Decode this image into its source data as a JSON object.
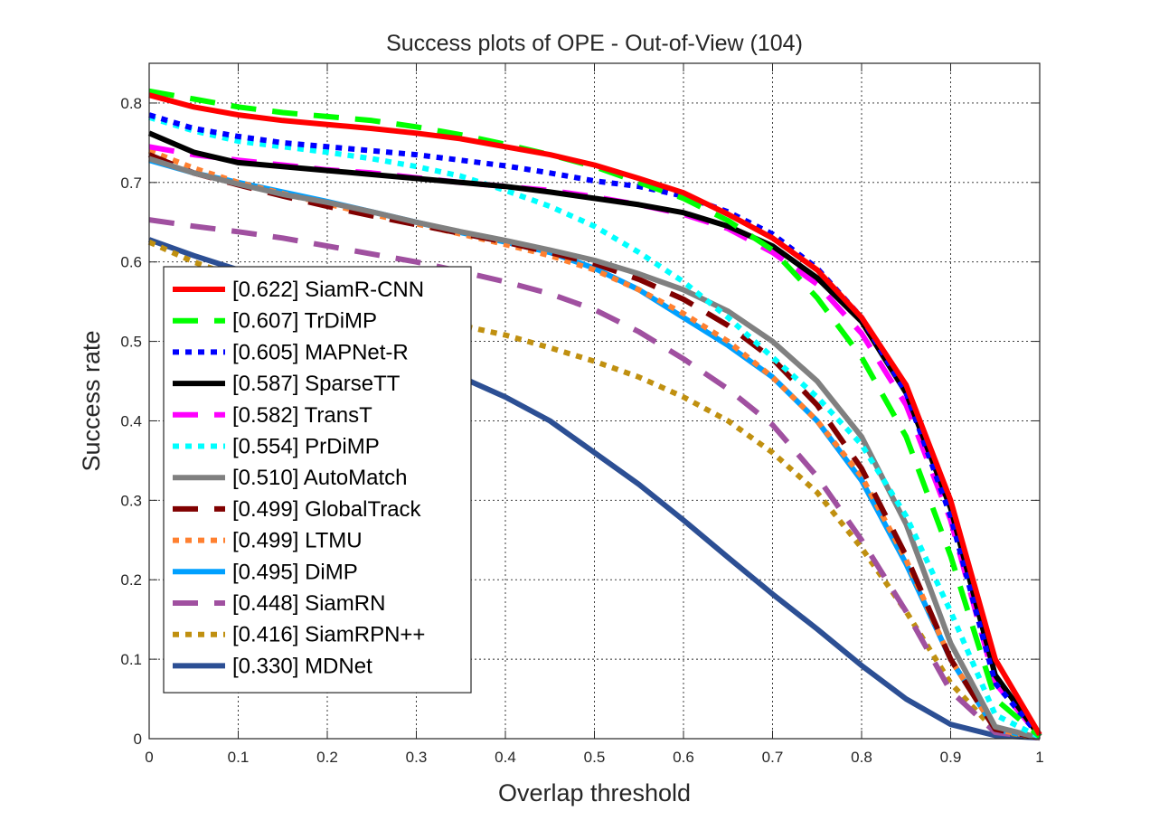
{
  "chart_data": {
    "type": "line",
    "title": "Success plots of OPE - Out-of-View (104)",
    "xlabel": "Overlap threshold",
    "ylabel": "Success rate",
    "xlim": [
      0,
      1
    ],
    "ylim": [
      0,
      0.85
    ],
    "xticks": [
      0,
      0.1,
      0.2,
      0.3,
      0.4,
      0.5,
      0.6,
      0.7,
      0.8,
      0.9,
      1
    ],
    "xtick_labels": [
      "0",
      "0.1",
      "0.2",
      "0.3",
      "0.4",
      "0.5",
      "0.6",
      "0.7",
      "0.8",
      "0.9",
      "1"
    ],
    "yticks": [
      0,
      0.1,
      0.2,
      0.3,
      0.4,
      0.5,
      0.6,
      0.7,
      0.8
    ],
    "ytick_labels": [
      "0",
      "0.1",
      "0.2",
      "0.3",
      "0.4",
      "0.5",
      "0.6",
      "0.7",
      "0.8"
    ],
    "grid": true,
    "legend_position": "lower-left",
    "x": [
      0,
      0.05,
      0.1,
      0.15,
      0.2,
      0.25,
      0.3,
      0.35,
      0.4,
      0.45,
      0.5,
      0.55,
      0.6,
      0.65,
      0.7,
      0.75,
      0.8,
      0.85,
      0.9,
      0.95,
      1
    ],
    "series": [
      {
        "name": "SiamR-CNN",
        "label": "[0.622] SiamR-CNN",
        "color": "#ff0000",
        "style": "solid",
        "values": [
          0.81,
          0.795,
          0.785,
          0.778,
          0.773,
          0.768,
          0.762,
          0.755,
          0.745,
          0.735,
          0.722,
          0.705,
          0.687,
          0.66,
          0.63,
          0.59,
          0.53,
          0.445,
          0.3,
          0.1,
          0.005
        ]
      },
      {
        "name": "TrDiMP",
        "label": "[0.607] TrDiMP",
        "color": "#00ff00",
        "style": "dashed",
        "values": [
          0.815,
          0.805,
          0.795,
          0.788,
          0.783,
          0.778,
          0.77,
          0.76,
          0.748,
          0.735,
          0.72,
          0.7,
          0.68,
          0.652,
          0.615,
          0.555,
          0.48,
          0.38,
          0.23,
          0.05,
          0.003
        ]
      },
      {
        "name": "MAPNet-R",
        "label": "[0.605] MAPNet-R",
        "color": "#0000ff",
        "style": "dotted",
        "values": [
          0.785,
          0.768,
          0.758,
          0.75,
          0.745,
          0.74,
          0.735,
          0.728,
          0.721,
          0.712,
          0.702,
          0.695,
          0.683,
          0.663,
          0.635,
          0.592,
          0.53,
          0.435,
          0.28,
          0.07,
          0.003
        ]
      },
      {
        "name": "SparseTT",
        "label": "[0.587] SparseTT",
        "color": "#000000",
        "style": "solid",
        "values": [
          0.762,
          0.738,
          0.725,
          0.72,
          0.715,
          0.71,
          0.705,
          0.7,
          0.695,
          0.688,
          0.68,
          0.672,
          0.662,
          0.645,
          0.62,
          0.58,
          0.525,
          0.435,
          0.29,
          0.08,
          0.003
        ]
      },
      {
        "name": "TransT",
        "label": "[0.582] TransT",
        "color": "#ff00ff",
        "style": "dashed",
        "values": [
          0.745,
          0.735,
          0.728,
          0.722,
          0.716,
          0.712,
          0.706,
          0.7,
          0.695,
          0.69,
          0.682,
          0.672,
          0.66,
          0.642,
          0.612,
          0.572,
          0.51,
          0.42,
          0.275,
          0.07,
          0.003
        ]
      },
      {
        "name": "PrDiMP",
        "label": "[0.554] PrDiMP",
        "color": "#00ffff",
        "style": "dotted",
        "values": [
          0.782,
          0.765,
          0.752,
          0.745,
          0.738,
          0.73,
          0.72,
          0.708,
          0.69,
          0.67,
          0.645,
          0.612,
          0.575,
          0.53,
          0.48,
          0.43,
          0.37,
          0.28,
          0.16,
          0.03,
          0.002
        ]
      },
      {
        "name": "AutoMatch",
        "label": "[0.510] AutoMatch",
        "color": "#808080",
        "style": "solid",
        "values": [
          0.73,
          0.712,
          0.698,
          0.685,
          0.675,
          0.663,
          0.65,
          0.638,
          0.627,
          0.615,
          0.602,
          0.585,
          0.565,
          0.538,
          0.5,
          0.45,
          0.38,
          0.27,
          0.12,
          0.015,
          0.001
        ]
      },
      {
        "name": "GlobalTrack",
        "label": "[0.499] GlobalTrack",
        "color": "#800000",
        "style": "dashed",
        "values": [
          0.735,
          0.712,
          0.697,
          0.683,
          0.67,
          0.658,
          0.647,
          0.636,
          0.625,
          0.612,
          0.598,
          0.578,
          0.553,
          0.52,
          0.478,
          0.42,
          0.34,
          0.23,
          0.1,
          0.012,
          0.001
        ]
      },
      {
        "name": "LTMU",
        "label": "[0.499] LTMU",
        "color": "#ff8030",
        "style": "dotted",
        "values": [
          0.74,
          0.718,
          0.7,
          0.686,
          0.673,
          0.66,
          0.648,
          0.635,
          0.622,
          0.608,
          0.59,
          0.565,
          0.535,
          0.5,
          0.455,
          0.4,
          0.33,
          0.225,
          0.1,
          0.012,
          0.001
        ]
      },
      {
        "name": "DiMP",
        "label": "[0.495] DiMP",
        "color": "#00a0ff",
        "style": "solid",
        "values": [
          0.728,
          0.712,
          0.7,
          0.688,
          0.676,
          0.663,
          0.65,
          0.637,
          0.625,
          0.612,
          0.592,
          0.565,
          0.53,
          0.495,
          0.455,
          0.4,
          0.325,
          0.22,
          0.1,
          0.012,
          0.001
        ]
      },
      {
        "name": "SiamRN",
        "label": "[0.448] SiamRN",
        "color": "#a050a0",
        "style": "dashed",
        "values": [
          0.653,
          0.645,
          0.638,
          0.63,
          0.62,
          0.61,
          0.6,
          0.588,
          0.575,
          0.56,
          0.54,
          0.512,
          0.478,
          0.44,
          0.395,
          0.33,
          0.25,
          0.16,
          0.06,
          0.008,
          0.001
        ]
      },
      {
        "name": "SiamRPN++",
        "label": "[0.416] SiamRPN++",
        "color": "#c09010",
        "style": "dotted",
        "values": [
          0.625,
          0.6,
          0.58,
          0.565,
          0.55,
          0.54,
          0.53,
          0.52,
          0.508,
          0.492,
          0.475,
          0.455,
          0.43,
          0.4,
          0.36,
          0.31,
          0.24,
          0.16,
          0.07,
          0.01,
          0.001
        ]
      },
      {
        "name": "MDNet",
        "label": "[0.330] MDNet",
        "color": "#2c4f94",
        "style": "solid",
        "values": [
          0.628,
          0.608,
          0.59,
          0.565,
          0.535,
          0.505,
          0.48,
          0.455,
          0.43,
          0.4,
          0.36,
          0.32,
          0.275,
          0.228,
          0.182,
          0.138,
          0.092,
          0.05,
          0.018,
          0.004,
          0.001
        ]
      }
    ]
  }
}
